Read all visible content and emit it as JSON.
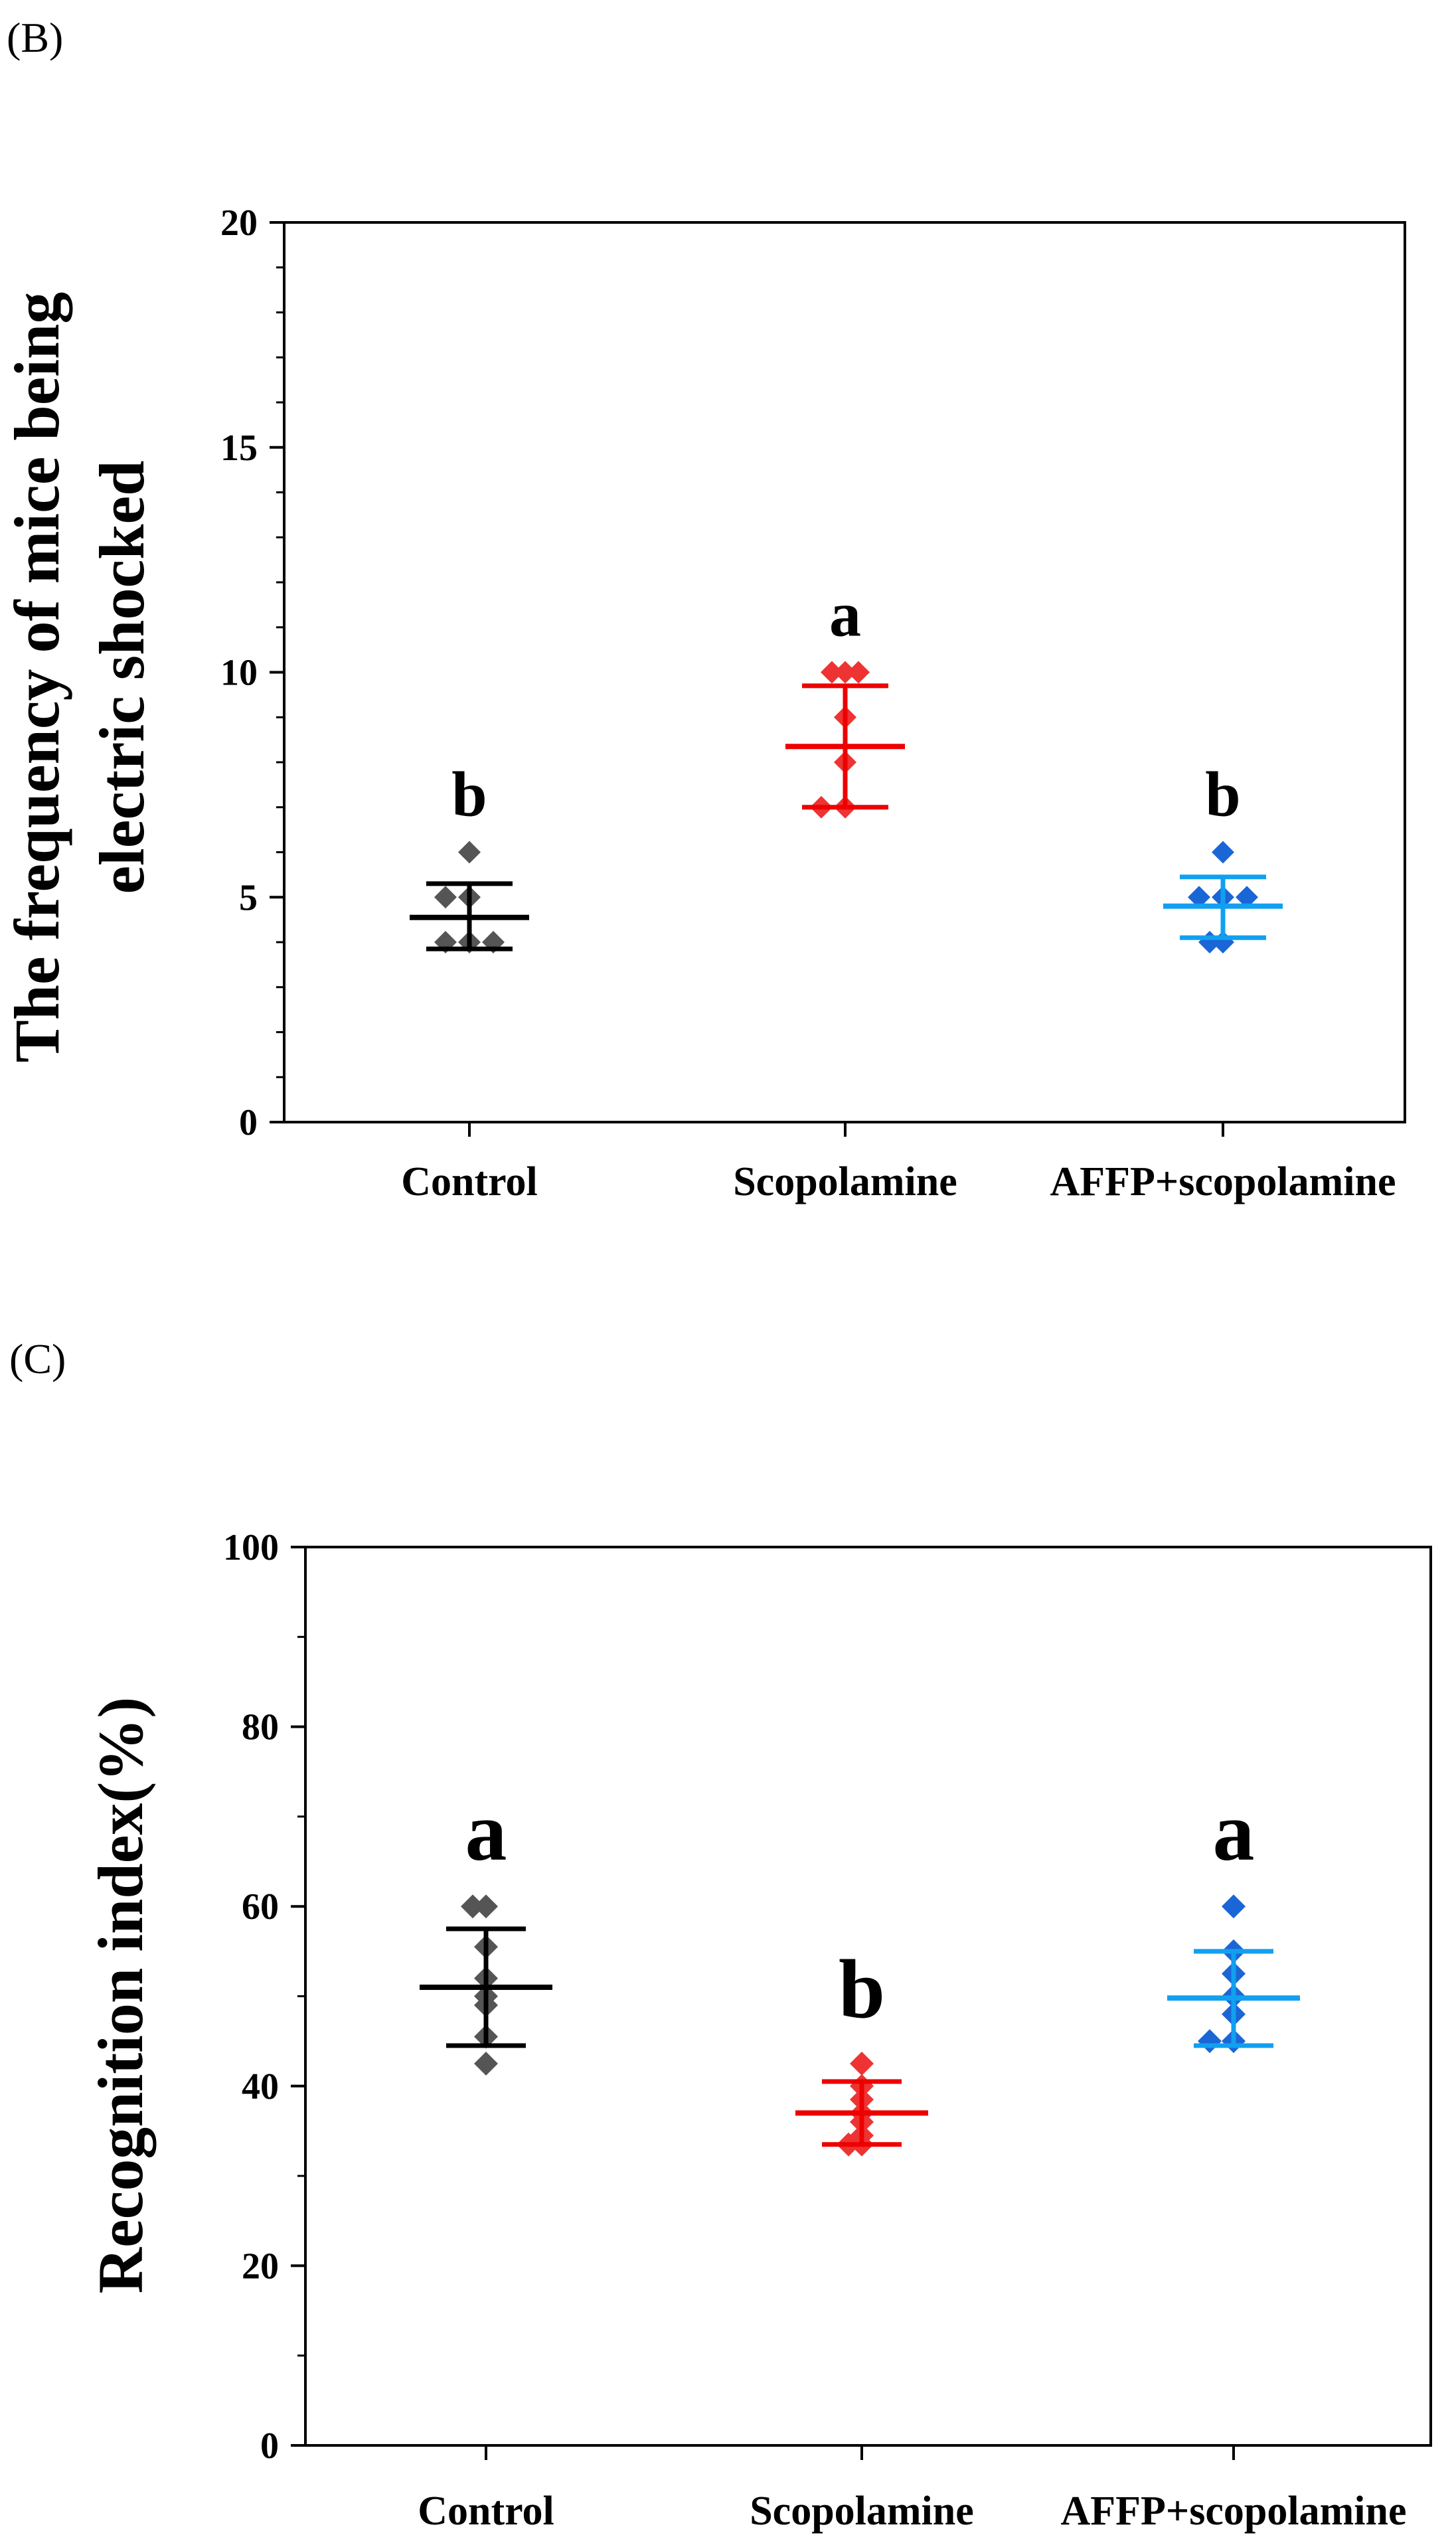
{
  "chart_data": [
    {
      "panel_label": "(B)",
      "type": "scatter",
      "ylabel_lines": [
        "The frequency of mice being",
        "electric shocked"
      ],
      "ylim": [
        0,
        20
      ],
      "yticks": [
        "0",
        "5",
        "10",
        "15",
        "20"
      ],
      "categories": [
        "Control",
        "Scopolamine",
        "AFFP+scopolamine"
      ],
      "series": [
        {
          "name": "Control",
          "color": "#555555",
          "line_color": "#000000",
          "points": [
            6,
            5,
            5,
            4,
            4,
            4
          ],
          "mean": 4.55,
          "err_low": 3.85,
          "err_high": 5.3,
          "letter": "b"
        },
        {
          "name": "Scopolamine",
          "color": "#ee3333",
          "line_color": "#ee0000",
          "points": [
            10,
            10,
            10,
            9,
            8,
            7,
            7
          ],
          "mean": 8.35,
          "err_low": 7.0,
          "err_high": 9.7,
          "letter": "a"
        },
        {
          "name": "AFFP+scopolamine",
          "color": "#1a66d6",
          "line_color": "#11a0f0",
          "points": [
            6,
            5,
            5,
            5,
            4,
            4
          ],
          "mean": 4.8,
          "err_low": 4.1,
          "err_high": 5.45,
          "letter": "b"
        }
      ]
    },
    {
      "panel_label": "(C)",
      "type": "scatter",
      "ylabel_lines": [
        "Recognition index(%)"
      ],
      "ylim": [
        0,
        100
      ],
      "yticks": [
        "0",
        "20",
        "40",
        "60",
        "80",
        "100"
      ],
      "categories": [
        "Control",
        "Scopolamine",
        "AFFP+scopolamine"
      ],
      "series": [
        {
          "name": "Control",
          "color": "#555555",
          "line_color": "#000000",
          "points": [
            60,
            60,
            55.5,
            52,
            50,
            49,
            45.5,
            42.5
          ],
          "mean": 51,
          "err_low": 44.5,
          "err_high": 57.5,
          "letter": "a"
        },
        {
          "name": "Scopolamine",
          "color": "#ee3333",
          "line_color": "#ee0000",
          "points": [
            42.5,
            40,
            38.5,
            37,
            36,
            34.5,
            33.5,
            33.5
          ],
          "mean": 37,
          "err_low": 33.5,
          "err_high": 40.5,
          "letter": "b"
        },
        {
          "name": "AFFP+scopolamine",
          "color": "#1a66d6",
          "line_color": "#11a0f0",
          "points": [
            60,
            55,
            52.5,
            50,
            48,
            45,
            45
          ],
          "mean": 49.8,
          "err_low": 44.5,
          "err_high": 55,
          "letter": "a"
        }
      ]
    }
  ]
}
